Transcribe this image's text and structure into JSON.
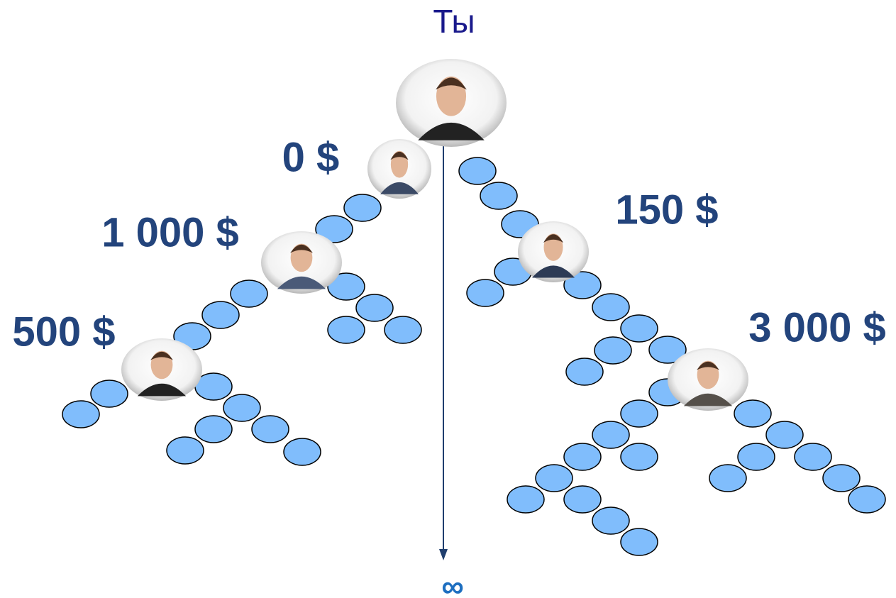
{
  "title": "Ты",
  "nodes": [
    {
      "label": "0 $"
    },
    {
      "label": "1 000 $"
    },
    {
      "label": "500 $"
    },
    {
      "label": "150 $"
    },
    {
      "label": "3 000 $"
    }
  ],
  "infinity": "∞"
}
